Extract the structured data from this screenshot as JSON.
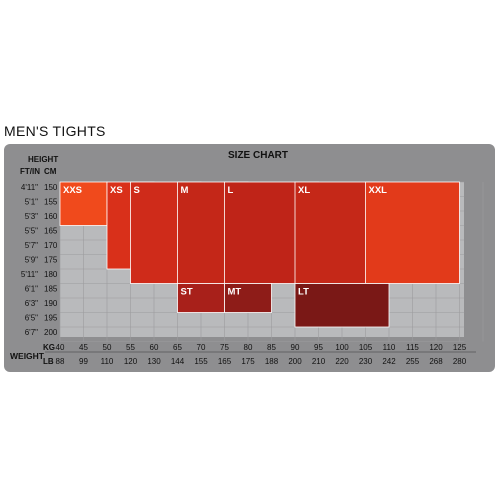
{
  "page_title": "MEN'S TIGHTS",
  "chart_data": {
    "type": "heatmap",
    "title": "SIZE CHART",
    "height_header": "HEIGHT",
    "weight_header": "WEIGHT",
    "ft_in_label": "FT/IN",
    "cm_label": "CM",
    "kg_label": "KG",
    "lb_label": "LB",
    "height_ft_in": [
      "4'11\"",
      "5'1\"",
      "5'3\"",
      "5'5\"",
      "5'7\"",
      "5'9\"",
      "5'11\"",
      "6'1\"",
      "6'3\"",
      "6'5\"",
      "6'7\""
    ],
    "height_cm": [
      "150",
      "155",
      "160",
      "165",
      "170",
      "175",
      "180",
      "185",
      "190",
      "195",
      "200"
    ],
    "weight_kg": [
      "40",
      "45",
      "50",
      "55",
      "60",
      "65",
      "70",
      "75",
      "80",
      "85",
      "90",
      "95",
      "100",
      "105",
      "110",
      "115",
      "120",
      "125"
    ],
    "weight_lb": [
      "88",
      "99",
      "110",
      "120",
      "130",
      "144",
      "155",
      "165",
      "175",
      "188",
      "200",
      "210",
      "220",
      "230",
      "242",
      "255",
      "268",
      "280"
    ],
    "sizes": [
      {
        "name": "XXS",
        "color": "#f04a1c",
        "kg_range": [
          40,
          50
        ],
        "cm_range": [
          150,
          165
        ]
      },
      {
        "name": "XS",
        "color": "#d9301a",
        "kg_range": [
          50,
          60
        ],
        "cm_range": [
          150,
          180
        ]
      },
      {
        "name": "S",
        "color": "#cf2b1a",
        "kg_range": [
          55,
          70
        ],
        "cm_range": [
          150,
          185
        ]
      },
      {
        "name": "M",
        "color": "#c42718",
        "kg_range": [
          65,
          80
        ],
        "cm_range": [
          150,
          185
        ]
      },
      {
        "name": "L",
        "color": "#bf2418",
        "kg_range": [
          75,
          95
        ],
        "cm_range": [
          150,
          185
        ]
      },
      {
        "name": "XL",
        "color": "#c52818",
        "kg_range": [
          90,
          110
        ],
        "cm_range": [
          150,
          185
        ]
      },
      {
        "name": "XXL",
        "color": "#e23a1a",
        "kg_range": [
          105,
          125
        ],
        "cm_range": [
          150,
          185
        ]
      },
      {
        "name": "ST",
        "color": "#a8201a",
        "kg_range": [
          65,
          75
        ],
        "cm_range": [
          185,
          195
        ]
      },
      {
        "name": "MT",
        "color": "#8e1c18",
        "kg_range": [
          75,
          85
        ],
        "cm_range": [
          185,
          195
        ]
      },
      {
        "name": "LT",
        "color": "#7a1816",
        "kg_range": [
          90,
          110
        ],
        "cm_range": [
          185,
          200
        ]
      }
    ],
    "colors": {
      "panel": "#8e8e90",
      "grid_area": "#b9babc",
      "text": "#111111",
      "label_text": "#ffffff"
    }
  }
}
